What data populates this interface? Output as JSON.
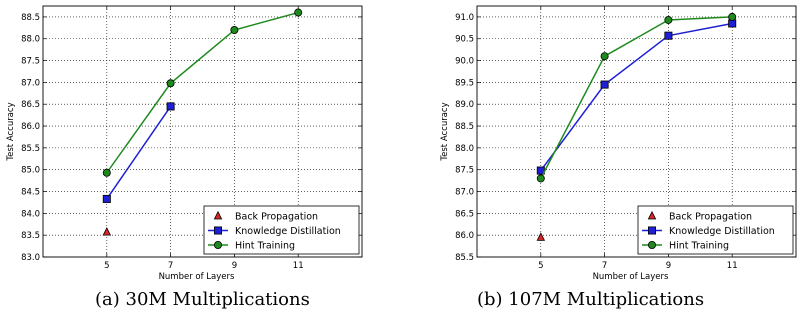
{
  "chart_data": [
    {
      "type": "line",
      "caption": "(a) 30M Multiplications",
      "xlabel": "Number of Layers",
      "ylabel": "Test Accuracy",
      "xlim": [
        3,
        13
      ],
      "ylim": [
        83.0,
        88.75
      ],
      "xticks": [
        5,
        7,
        9,
        11
      ],
      "yticks": [
        83.0,
        83.5,
        84.0,
        84.5,
        85.0,
        85.5,
        86.0,
        86.5,
        87.0,
        87.5,
        88.0,
        88.5
      ],
      "grid": true,
      "legend_position": "lower-right",
      "series": [
        {
          "name": "Back Propagation",
          "color": "#d62728",
          "marker": "triangle",
          "line": false,
          "x": [
            5
          ],
          "y": [
            83.57
          ]
        },
        {
          "name": "Knowledge Distillation",
          "color": "#1f1fd6",
          "marker": "square",
          "line": true,
          "x": [
            5,
            7
          ],
          "y": [
            84.33,
            86.45
          ]
        },
        {
          "name": "Hint Training",
          "color": "#1e8a1e",
          "marker": "circle",
          "line": true,
          "x": [
            5,
            7,
            9,
            11
          ],
          "y": [
            84.93,
            86.98,
            88.2,
            88.6
          ]
        }
      ]
    },
    {
      "type": "line",
      "caption": "(b) 107M Multiplications",
      "xlabel": "Number of Layers",
      "ylabel": "Test Accuracy",
      "xlim": [
        3,
        13
      ],
      "ylim": [
        85.5,
        91.25
      ],
      "xticks": [
        5,
        7,
        9,
        11
      ],
      "yticks": [
        85.5,
        86.0,
        86.5,
        87.0,
        87.5,
        88.0,
        88.5,
        89.0,
        89.5,
        90.0,
        90.5,
        91.0
      ],
      "grid": true,
      "legend_position": "lower-right",
      "series": [
        {
          "name": "Back Propagation",
          "color": "#d62728",
          "marker": "triangle",
          "line": false,
          "x": [
            5
          ],
          "y": [
            85.95
          ]
        },
        {
          "name": "Knowledge Distillation",
          "color": "#1f1fd6",
          "marker": "square",
          "line": true,
          "x": [
            5,
            7,
            9,
            11
          ],
          "y": [
            87.48,
            89.45,
            90.57,
            90.85
          ]
        },
        {
          "name": "Hint Training",
          "color": "#1e8a1e",
          "marker": "circle",
          "line": true,
          "x": [
            5,
            7,
            9,
            11
          ],
          "y": [
            87.3,
            90.1,
            90.93,
            91.0
          ]
        }
      ]
    }
  ]
}
